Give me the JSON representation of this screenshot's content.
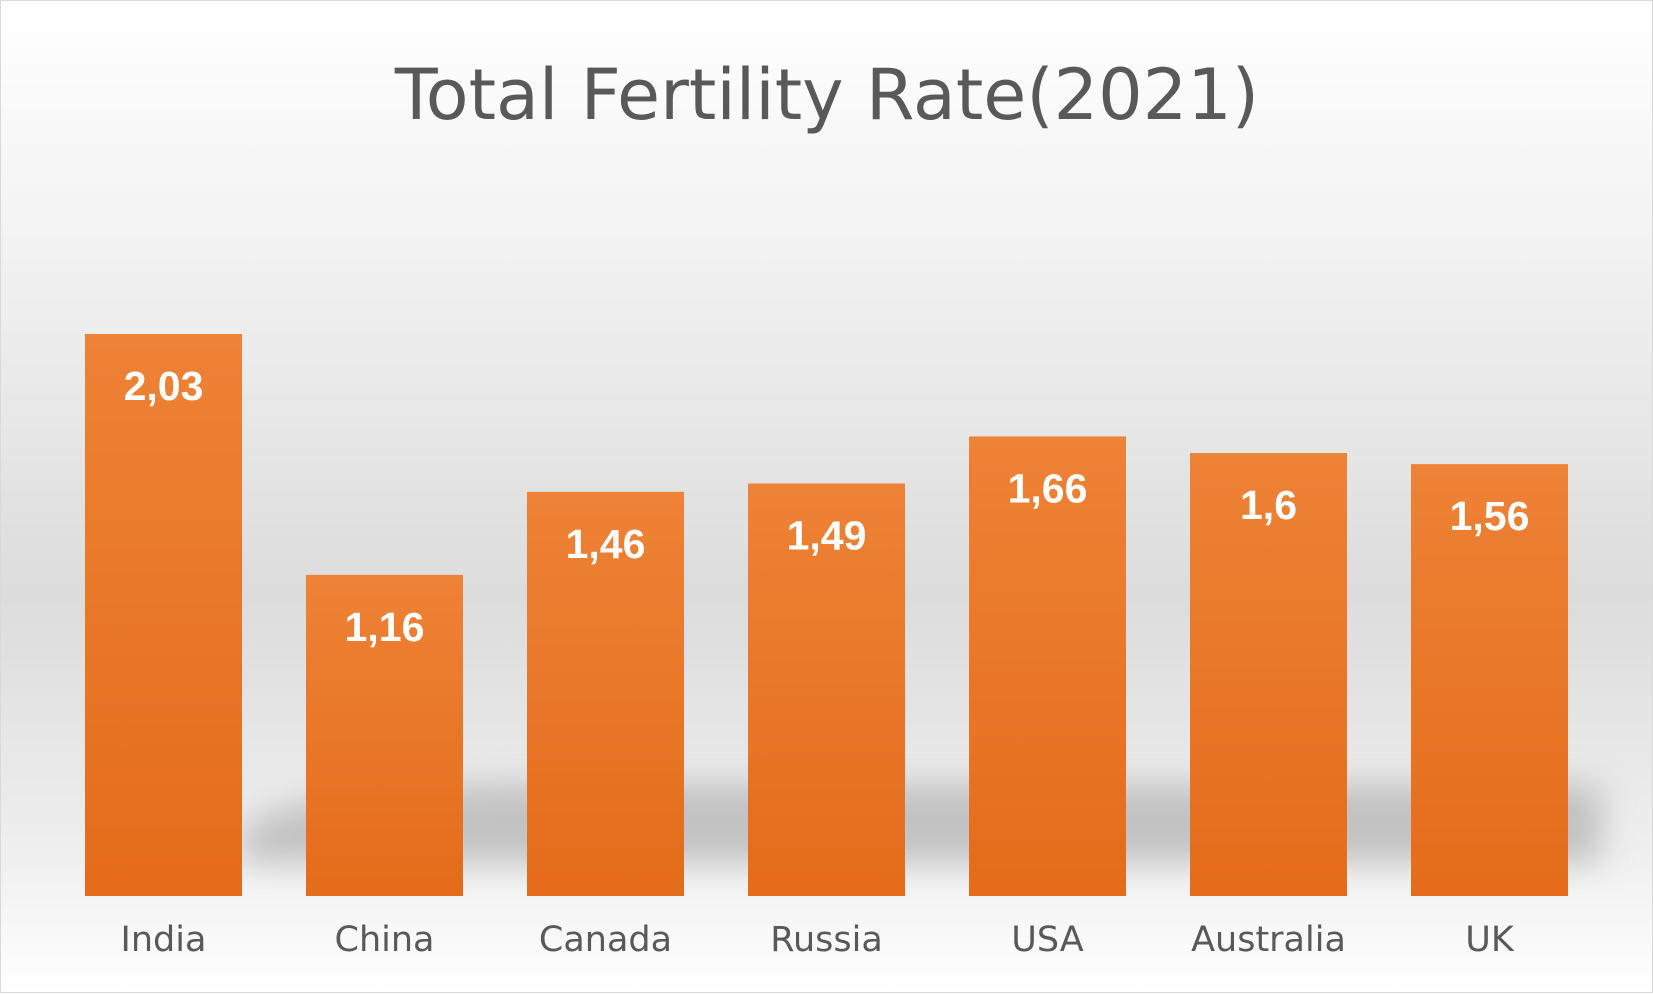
{
  "chart_data": {
    "type": "bar",
    "title": "Total Fertility Rate(2021)",
    "xlabel": "",
    "ylabel": "",
    "categories": [
      "India",
      "China",
      "Canada",
      "Russia",
      "USA",
      "Australia",
      "UK"
    ],
    "values": [
      2.03,
      1.16,
      1.46,
      1.49,
      1.66,
      1.6,
      1.56
    ],
    "data_labels": [
      "2,03",
      "1,16",
      "1,46",
      "1,49",
      "1,66",
      "1,6",
      "1,56"
    ],
    "ylim": [
      0,
      2.03
    ],
    "grid": false,
    "legend": "none",
    "bar_color": "#e46c1a",
    "bar_color_light": "#ee8236"
  }
}
